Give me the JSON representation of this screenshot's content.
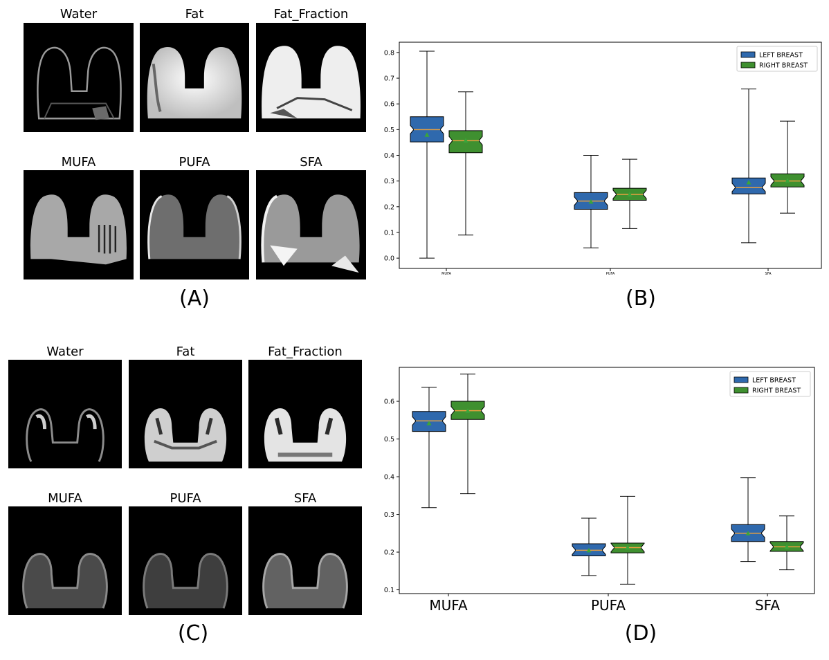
{
  "panels": {
    "a": {
      "label": "(A)",
      "titles": [
        "Water",
        "Fat",
        "Fat_Fraction",
        "MUFA",
        "PUFA",
        "SFA"
      ]
    },
    "b": {
      "label": "(B)"
    },
    "c": {
      "label": "(C)",
      "titles": [
        "Water",
        "Fat",
        "Fat_Fraction",
        "MUFA",
        "PUFA",
        "SFA"
      ]
    },
    "d": {
      "label": "(D)"
    }
  },
  "chart_data": [
    {
      "id": "B",
      "type": "boxplot",
      "title": "",
      "xlabel": "",
      "ylabel": "",
      "categories": [
        "MUFA",
        "PUFA",
        "SFA"
      ],
      "ylim": [
        -0.04,
        0.84
      ],
      "yticks": [
        0.0,
        0.1,
        0.2,
        0.3,
        0.4,
        0.5,
        0.6,
        0.7,
        0.8
      ],
      "tick_label_size": "small",
      "legend": {
        "position": "top-right",
        "entries": [
          "LEFT BREAST",
          "RIGHT BREAST"
        ]
      },
      "colors": {
        "left": "#2f69ad",
        "right": "#3f9030",
        "median": "#e8a040",
        "mean": "#3aa63a"
      },
      "series": [
        {
          "name": "LEFT BREAST",
          "boxes": [
            {
              "min": 0.0,
              "q1": 0.452,
              "median": 0.5,
              "q3": 0.55,
              "max": 0.805,
              "mean": 0.48
            },
            {
              "min": 0.04,
              "q1": 0.19,
              "median": 0.222,
              "q3": 0.255,
              "max": 0.4,
              "mean": 0.22
            },
            {
              "min": 0.06,
              "q1": 0.25,
              "median": 0.275,
              "q3": 0.312,
              "max": 0.658,
              "mean": 0.295
            }
          ]
        },
        {
          "name": "RIGHT BREAST",
          "boxes": [
            {
              "min": 0.09,
              "q1": 0.41,
              "median": 0.457,
              "q3": 0.496,
              "max": 0.647,
              "mean": 0.458
            },
            {
              "min": 0.115,
              "q1": 0.225,
              "median": 0.248,
              "q3": 0.272,
              "max": 0.385,
              "mean": 0.248
            },
            {
              "min": 0.175,
              "q1": 0.277,
              "median": 0.3,
              "q3": 0.328,
              "max": 0.533,
              "mean": 0.302
            }
          ]
        }
      ]
    },
    {
      "id": "D",
      "type": "boxplot",
      "title": "",
      "xlabel": "",
      "ylabel": "",
      "categories": [
        "MUFA",
        "PUFA",
        "SFA"
      ],
      "ylim": [
        0.09,
        0.69
      ],
      "yticks": [
        0.1,
        0.2,
        0.3,
        0.4,
        0.5,
        0.6
      ],
      "tick_label_size": "large",
      "legend": {
        "position": "top-right",
        "entries": [
          "LEFT BREAST",
          "RIGHT BREAST"
        ]
      },
      "colors": {
        "left": "#2f69ad",
        "right": "#3f9030",
        "median": "#e8a040",
        "mean": "#3aa63a"
      },
      "series": [
        {
          "name": "LEFT BREAST",
          "boxes": [
            {
              "min": 0.318,
              "q1": 0.52,
              "median": 0.548,
              "q3": 0.573,
              "max": 0.637,
              "mean": 0.542
            },
            {
              "min": 0.138,
              "q1": 0.19,
              "median": 0.205,
              "q3": 0.222,
              "max": 0.29,
              "mean": 0.205
            },
            {
              "min": 0.175,
              "q1": 0.228,
              "median": 0.25,
              "q3": 0.273,
              "max": 0.397,
              "mean": 0.25
            }
          ]
        },
        {
          "name": "RIGHT BREAST",
          "boxes": [
            {
              "min": 0.355,
              "q1": 0.552,
              "median": 0.575,
              "q3": 0.6,
              "max": 0.672,
              "mean": 0.575
            },
            {
              "min": 0.115,
              "q1": 0.198,
              "median": 0.212,
              "q3": 0.224,
              "max": 0.348,
              "mean": 0.212
            },
            {
              "min": 0.153,
              "q1": 0.202,
              "median": 0.214,
              "q3": 0.228,
              "max": 0.296,
              "mean": 0.214
            }
          ]
        }
      ]
    }
  ]
}
